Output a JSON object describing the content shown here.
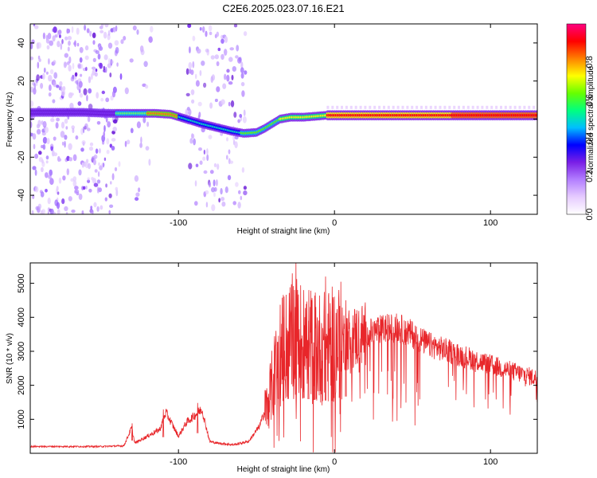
{
  "title": "C2E6.2025.023.07.16.E21",
  "chart_data": [
    {
      "type": "heatmap",
      "xlabel": "Height of straight line (km)",
      "ylabel": "Frequency (Hz)",
      "xlim": [
        -195,
        130
      ],
      "ylim": [
        -50,
        50
      ],
      "xticks": [
        -100,
        0,
        100
      ],
      "yticks": [
        -40,
        -20,
        0,
        20,
        40
      ],
      "xticks_labels": [
        "-100",
        "0",
        "100"
      ],
      "yticks_labels": [
        "-40",
        "-20",
        "0",
        "20",
        "40"
      ],
      "grid": false,
      "colorbar": {
        "label": "Normalized spectral amplitude",
        "range": [
          0,
          1
        ],
        "ticks_labels": [
          "0.0",
          "0.2",
          "0.4",
          "0.6",
          "0.8"
        ],
        "ticks": [
          0.0,
          0.2,
          0.4,
          0.6,
          0.8
        ],
        "colors": [
          "#ffffff",
          "#e6ccff",
          "#b37fff",
          "#7a1fe6",
          "#0000ff",
          "#00bfff",
          "#00ff80",
          "#66ff00",
          "#ffff00",
          "#ff8000",
          "#ff0000",
          "#ff0080"
        ]
      },
      "ridge": {
        "x": [
          -195,
          -180,
          -160,
          -145,
          -130,
          -115,
          -105,
          -95,
          -85,
          -75,
          -65,
          -58,
          -50,
          -45,
          -40,
          -35,
          -28,
          -20,
          -12,
          -5,
          0,
          10,
          30,
          60,
          90,
          110,
          130
        ],
        "freq": [
          3.5,
          3.5,
          3.5,
          3.0,
          3.0,
          3.0,
          2.5,
          0.0,
          -2.5,
          -4.5,
          -6.5,
          -7.5,
          -7.0,
          -5.0,
          -2.5,
          0.0,
          1.0,
          1.0,
          1.5,
          2.0,
          2.0,
          2.0,
          2.0,
          2.0,
          2.0,
          2.0,
          2.0
        ]
      }
    },
    {
      "type": "line",
      "xlabel": "Height of straight line (km)",
      "ylabel": "SNR (10 * v/v)",
      "xlim": [
        -195,
        130
      ],
      "ylim": [
        0,
        5600
      ],
      "xticks": [
        -100,
        0,
        100
      ],
      "yticks": [
        1000,
        2000,
        3000,
        4000,
        5000
      ],
      "xticks_labels": [
        "-100",
        "0",
        "100"
      ],
      "yticks_labels": [
        "1000",
        "2000",
        "3000",
        "4000",
        "5000"
      ],
      "grid": false,
      "series": [
        {
          "color": "#e8262a",
          "envelope": {
            "x": [
              -195,
              -150,
              -135,
              -130,
              -128,
              -120,
              -112,
              -108,
              -100,
              -95,
              -85,
              -80,
              -75,
              -65,
              -55,
              -48,
              -42,
              -38,
              -35,
              -30,
              -26,
              -22,
              -18,
              -10,
              -5,
              0,
              5,
              10,
              20,
              30,
              40,
              50,
              60,
              80,
              100,
              115,
              130
            ],
            "y": [
              200,
              200,
              220,
              750,
              300,
              500,
              700,
              1200,
              500,
              900,
              1300,
              350,
              300,
              250,
              350,
              800,
              1600,
              2400,
              3000,
              3200,
              3500,
              3300,
              3200,
              3100,
              3100,
              3200,
              3300,
              3400,
              3500,
              3650,
              3700,
              3500,
              3200,
              2900,
              2600,
              2400,
              2200
            ]
          },
          "spikes": [
            {
              "x": -130,
              "y": 880
            },
            {
              "x": -110,
              "y": 1290
            },
            {
              "x": -88,
              "y": 1480
            },
            {
              "x": -30,
              "y": 3500
            },
            {
              "x": -25,
              "y": 5600
            },
            {
              "x": -20,
              "y": 4800
            },
            {
              "x": -13,
              "y": 4100
            },
            {
              "x": -6,
              "y": 5200
            },
            {
              "x": 7,
              "y": 4500
            },
            {
              "x": 3,
              "y": 3700
            },
            {
              "x": -33,
              "y": 4000
            },
            {
              "x": -17,
              "y": 3900
            }
          ]
        }
      ]
    }
  ]
}
